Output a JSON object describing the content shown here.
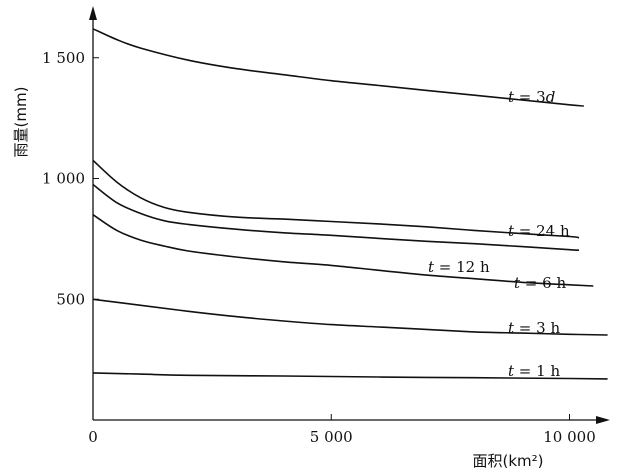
{
  "chart_data": {
    "type": "line",
    "title": "",
    "xlabel": "面积(km²)",
    "ylabel": "雨量(mm)",
    "xlim": [
      0,
      10500
    ],
    "ylim": [
      0,
      1700
    ],
    "xticks": [
      0,
      5000,
      10000
    ],
    "xtick_labels": [
      "0",
      "5 000",
      "10 000"
    ],
    "yticks": [
      500,
      1000,
      1500
    ],
    "ytick_labels": [
      "500",
      "1 000",
      "1 500"
    ],
    "grid": false,
    "series": [
      {
        "name": "t = 3d",
        "label_parts": [
          "t",
          " = 3",
          "d"
        ],
        "x": [
          0,
          500,
          1000,
          2000,
          3000,
          4000,
          5000,
          6000,
          7000,
          8000,
          9000,
          10000,
          10300
        ],
        "y": [
          1620,
          1575,
          1540,
          1490,
          1455,
          1430,
          1405,
          1385,
          1365,
          1345,
          1325,
          1305,
          1300
        ]
      },
      {
        "name": "t = 24 h",
        "label_parts": [
          "t",
          " = 24 h",
          ""
        ],
        "x": [
          0,
          500,
          1000,
          1500,
          2000,
          3000,
          4000,
          5000,
          6000,
          7000,
          8000,
          9000,
          10000,
          10200
        ],
        "y": [
          1075,
          985,
          920,
          880,
          860,
          840,
          832,
          822,
          812,
          800,
          785,
          772,
          760,
          755
        ]
      },
      {
        "name": "t = 12 h",
        "label_parts": [
          "t",
          " = 12 h",
          ""
        ],
        "x": [
          0,
          500,
          1000,
          1500,
          2000,
          3000,
          4000,
          5000,
          6000,
          7000,
          8000,
          9000,
          10000,
          10200
        ],
        "y": [
          975,
          900,
          855,
          825,
          810,
          790,
          775,
          765,
          752,
          740,
          730,
          718,
          705,
          703
        ]
      },
      {
        "name": "t = 6 h",
        "label_parts": [
          "t",
          " = 6 h",
          ""
        ],
        "x": [
          0,
          500,
          1000,
          1500,
          2000,
          3000,
          4000,
          5000,
          6000,
          7000,
          8000,
          9000,
          10000,
          10500
        ],
        "y": [
          850,
          785,
          745,
          720,
          700,
          675,
          655,
          640,
          620,
          600,
          585,
          570,
          560,
          555
        ]
      },
      {
        "name": "t = 3 h",
        "label_parts": [
          "t",
          " = 3 h",
          ""
        ],
        "x": [
          0,
          1000,
          2000,
          3000,
          4000,
          5000,
          6000,
          7000,
          8000,
          9000,
          10000,
          10800
        ],
        "y": [
          500,
          475,
          450,
          428,
          410,
          395,
          385,
          375,
          365,
          360,
          355,
          352
        ]
      },
      {
        "name": "t = 1 h",
        "label_parts": [
          "t",
          " = 1 h",
          ""
        ],
        "x": [
          0,
          1000,
          2000,
          4000,
          6000,
          8000,
          10000,
          10800
        ],
        "y": [
          195,
          190,
          185,
          182,
          178,
          175,
          172,
          170
        ]
      }
    ]
  }
}
